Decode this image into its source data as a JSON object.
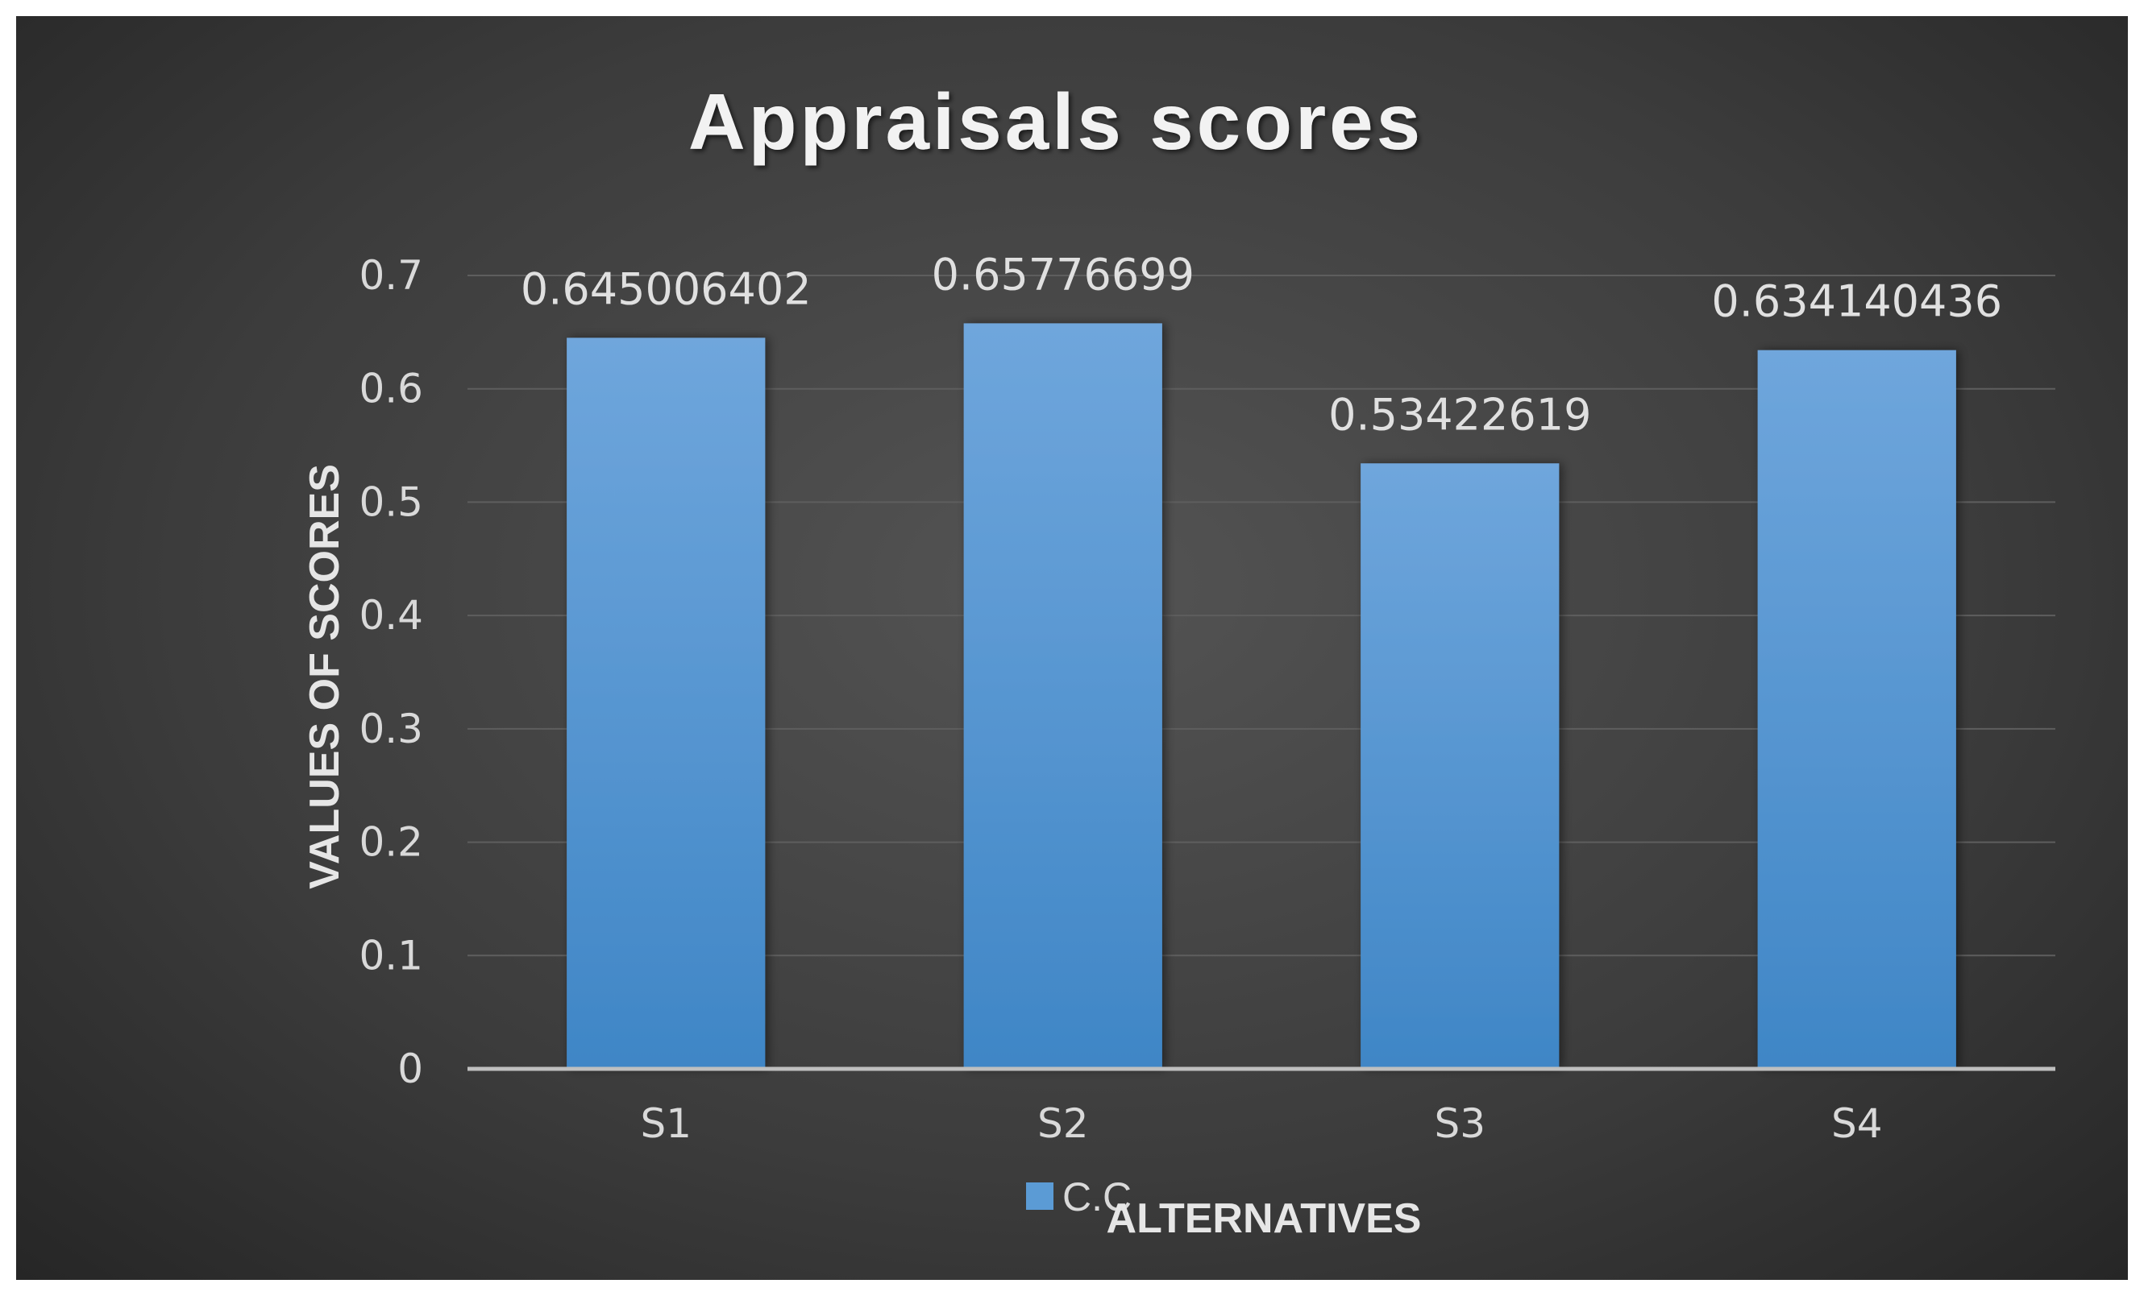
{
  "chart_data": {
    "type": "bar",
    "title": "Appraisals scores",
    "xlabel": "ALTERNATIVES",
    "ylabel": "VALUES OF SCORES",
    "categories": [
      "S1",
      "S2",
      "S3",
      "S4"
    ],
    "series": [
      {
        "name": "C.C",
        "values": [
          0.645006402,
          0.65776699,
          0.53422619,
          0.634140436
        ],
        "labels": [
          "0.645006402",
          "0.65776699",
          "0.53422619",
          "0.634140436"
        ],
        "color": "#5b9bd5"
      }
    ],
    "ylim": [
      0,
      0.7
    ],
    "yticks": [
      "0",
      "0.1",
      "0.2",
      "0.3",
      "0.4",
      "0.5",
      "0.6",
      "0.7"
    ],
    "grid": true,
    "legend": "bottom",
    "background": "#404040",
    "bar_color_top": "#6fa6dc",
    "bar_color_bottom": "#3f86c6"
  }
}
